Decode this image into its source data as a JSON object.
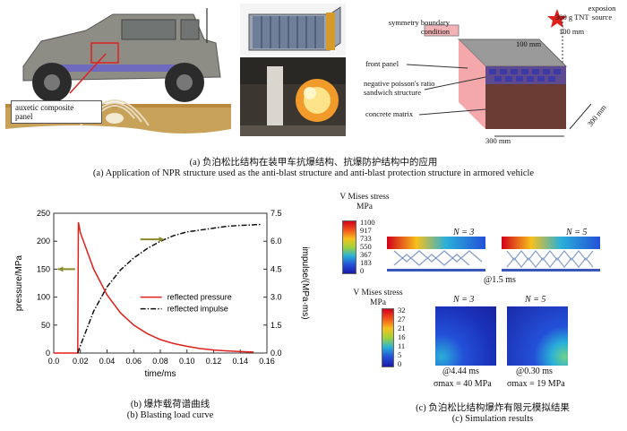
{
  "panel_a": {
    "vehicle_label": "auxetic composite\npanel",
    "annotations": {
      "symmetry": "symmetry boundary\ncondition",
      "tnt": "300 g TNT",
      "source": "exposion\nsource",
      "dim_100_top": "100 mm",
      "dim_100_side": "100 mm",
      "front_panel": "front panel",
      "sandwich": "negative poisson's ratio\nsandwich structure",
      "concrete": "concrete matrix",
      "dim_300_bottom": "300 mm",
      "dim_300_side": "300 mm"
    },
    "caption_cn": "(a) 负泊松比结构在装甲车抗爆结构、抗爆防护结构中的应用",
    "caption_en": "(a) Application of NPR structure used as the anti-blast structure and anti-blast protection structure in armored vehicle"
  },
  "panel_b": {
    "caption_cn": "(b) 爆炸载荷谱曲线",
    "caption_en": "(b) Blasting load curve"
  },
  "chart_data": {
    "type": "line",
    "xlabel": "time/ms",
    "ylabel": "pressure/MPa",
    "y2label": "impulse/(MPa·ms)",
    "xlim": [
      0.0,
      0.16
    ],
    "ylim": [
      0,
      250
    ],
    "y2lim": [
      0.0,
      7.5
    ],
    "xticks": [
      "0.0",
      "0.02",
      "0.04",
      "0.06",
      "0.08",
      "0.10",
      "0.12",
      "0.14",
      "0.16"
    ],
    "yticks": [
      "0",
      "50",
      "100",
      "150",
      "200",
      "250"
    ],
    "y2ticks": [
      "0.0",
      "1.5",
      "3.0",
      "4.5",
      "6.0",
      "7.5"
    ],
    "legend_position": "middle-right",
    "series": [
      {
        "name": "reflected pressure",
        "axis": "left",
        "color": "#e0201b",
        "style": "solid",
        "x": [
          0.0,
          0.018,
          0.0185,
          0.02,
          0.03,
          0.04,
          0.05,
          0.06,
          0.07,
          0.08,
          0.09,
          0.1,
          0.11,
          0.12,
          0.13,
          0.14,
          0.15
        ],
        "y": [
          0,
          0,
          234,
          215,
          150,
          104,
          72,
          50,
          35,
          24,
          17,
          12,
          8,
          5.5,
          3.8,
          2.6,
          1.8
        ]
      },
      {
        "name": "reflected impulse",
        "axis": "right",
        "color": "#111111",
        "style": "dashdot",
        "x": [
          0.018,
          0.02,
          0.03,
          0.04,
          0.05,
          0.06,
          0.07,
          0.08,
          0.09,
          0.1,
          0.11,
          0.12,
          0.13,
          0.14,
          0.15,
          0.155
        ],
        "y": [
          0.0,
          0.4,
          2.25,
          3.55,
          4.45,
          5.1,
          5.6,
          6.0,
          6.3,
          6.5,
          6.6,
          6.7,
          6.8,
          6.85,
          6.88,
          6.9
        ]
      }
    ]
  },
  "panel_c": {
    "stress_title_1": "V Mises stress\nMPa",
    "scale_1": [
      "1100",
      "917",
      "733",
      "550",
      "367",
      "183",
      "0"
    ],
    "n3": "N = 3",
    "n5": "N = 5",
    "time_1": "@1.5 ms",
    "stress_title_2": "V Mises stress\nMPa",
    "scale_2": [
      "32",
      "27",
      "21",
      "16",
      "11",
      "5",
      "0"
    ],
    "time_n3": "@4.44 ms",
    "time_n5": "@0.30 ms",
    "sigma_n3": "σmax = 40 MPa",
    "sigma_n5": "σmax = 19 MPa",
    "caption_cn": "(c) 负泊松比结构爆炸有限元模拟结果",
    "caption_en": "(c) Simulation results"
  }
}
